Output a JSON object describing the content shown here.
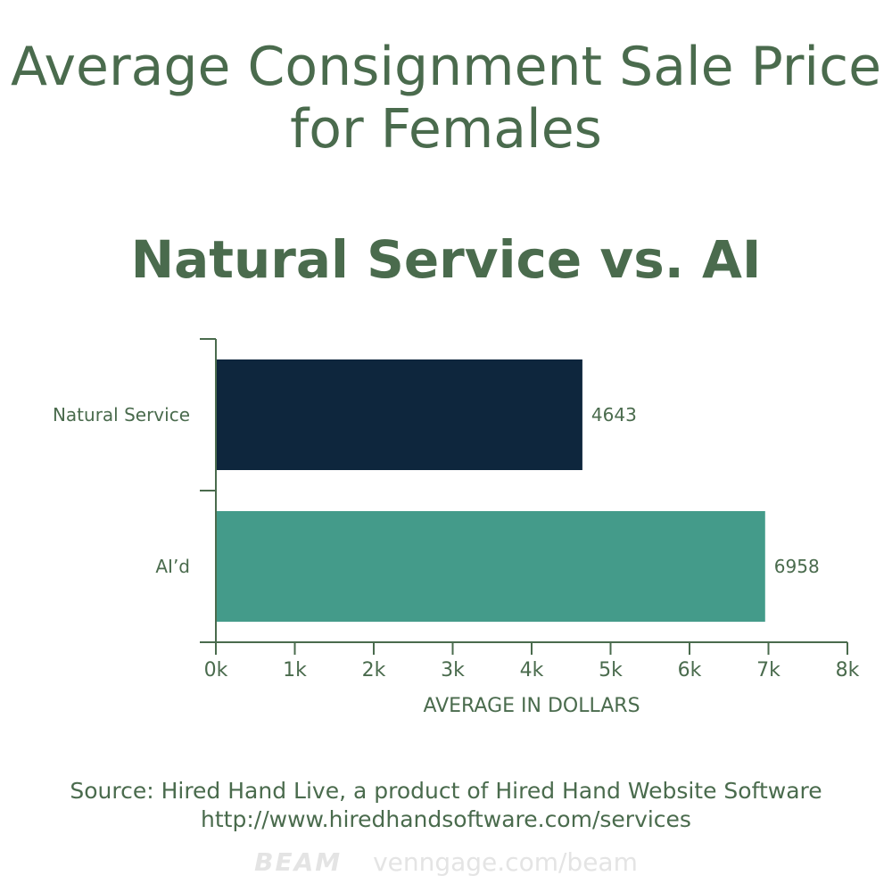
{
  "title_line1": "Average Consignment Sale Price",
  "title_line2": "for Females",
  "subtitle": "Natural Service vs. AI",
  "source_line1": "Source: Hired Hand Live, a product of Hired Hand Website Software",
  "source_line2": "http://www.hiredhandsoftware.com/services",
  "watermark": {
    "logo": "BEAM",
    "url": "venngage.com/beam"
  },
  "colors": {
    "text": "#4a6b4d",
    "axis": "#4a6b4d"
  },
  "chart_data": {
    "type": "bar",
    "orientation": "horizontal",
    "categories": [
      "Natural Service",
      "AI’d"
    ],
    "values": [
      4643,
      6958
    ],
    "value_labels": [
      "4643",
      "6958"
    ],
    "bar_colors": [
      "#0e263d",
      "#449b8a"
    ],
    "xlim": [
      0,
      8000
    ],
    "x_ticks": [
      0,
      1000,
      2000,
      3000,
      4000,
      5000,
      6000,
      7000,
      8000
    ],
    "x_tick_labels": [
      "0k",
      "1k",
      "2k",
      "3k",
      "4k",
      "5k",
      "6k",
      "7k",
      "8k"
    ],
    "xlabel": "AVERAGE IN DOLLARS",
    "ylabel": "",
    "title": "Average Consignment Sale Price for Females",
    "subtitle": "Natural Service vs. AI",
    "grid": false,
    "legend": false
  }
}
